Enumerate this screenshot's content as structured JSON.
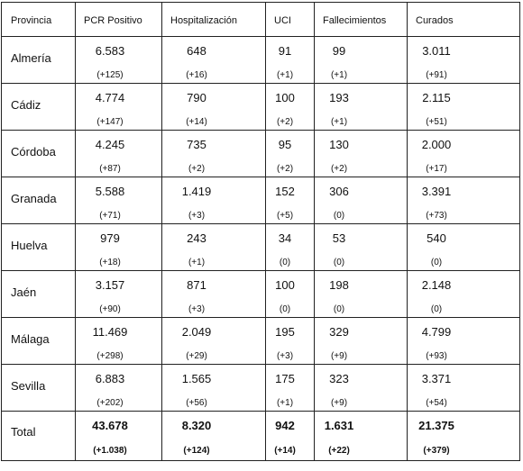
{
  "headers": [
    "Provincia",
    "PCR Positivo",
    "Hospitalización",
    "UCI",
    "Fallecimientos",
    "Curados"
  ],
  "rows": [
    {
      "name": "Almería",
      "cells": [
        [
          "6.583",
          "(+125)"
        ],
        [
          "648",
          "(+16)"
        ],
        [
          "91",
          "(+1)"
        ],
        [
          "99",
          "(+1)"
        ],
        [
          "3.011",
          "(+91)"
        ]
      ]
    },
    {
      "name": "Cádiz",
      "cells": [
        [
          "4.774",
          "(+147)"
        ],
        [
          "790",
          "(+14)"
        ],
        [
          "100",
          "(+2)"
        ],
        [
          "193",
          "(+1)"
        ],
        [
          "2.115",
          "(+51)"
        ]
      ]
    },
    {
      "name": "Córdoba",
      "cells": [
        [
          "4.245",
          "(+87)"
        ],
        [
          "735",
          "(+2)"
        ],
        [
          "95",
          "(+2)"
        ],
        [
          "130",
          "(+2)"
        ],
        [
          "2.000",
          "(+17)"
        ]
      ]
    },
    {
      "name": "Granada",
      "cells": [
        [
          "5.588",
          "(+71)"
        ],
        [
          "1.419",
          "(+3)"
        ],
        [
          "152",
          "(+5)"
        ],
        [
          "306",
          "(0)"
        ],
        [
          "3.391",
          "(+73)"
        ]
      ]
    },
    {
      "name": "Huelva",
      "cells": [
        [
          "979",
          "(+18)"
        ],
        [
          "243",
          "(+1)"
        ],
        [
          "34",
          "(0)"
        ],
        [
          "53",
          "(0)"
        ],
        [
          "540",
          "(0)"
        ]
      ]
    },
    {
      "name": "Jaén",
      "cells": [
        [
          "3.157",
          "(+90)"
        ],
        [
          "871",
          "(+3)"
        ],
        [
          "100",
          "(0)"
        ],
        [
          "198",
          "(0)"
        ],
        [
          "2.148",
          "(0)"
        ]
      ]
    },
    {
      "name": "Málaga",
      "cells": [
        [
          "11.469",
          "(+298)"
        ],
        [
          "2.049",
          "(+29)"
        ],
        [
          "195",
          "(+3)"
        ],
        [
          "329",
          "(+9)"
        ],
        [
          "4.799",
          "(+93)"
        ]
      ]
    },
    {
      "name": "Sevilla",
      "cells": [
        [
          "6.883",
          "(+202)"
        ],
        [
          "1.565",
          "(+56)"
        ],
        [
          "175",
          "(+1)"
        ],
        [
          "323",
          "(+9)"
        ],
        [
          "3.371",
          "(+54)"
        ]
      ]
    }
  ],
  "total": {
    "name": "Total",
    "cells": [
      [
        "43.678",
        "(+1.038)"
      ],
      [
        "8.320",
        "(+124)"
      ],
      [
        "942",
        "(+14)"
      ],
      [
        "1.631",
        "(+22)"
      ],
      [
        "21.375",
        "(+379)"
      ]
    ]
  }
}
